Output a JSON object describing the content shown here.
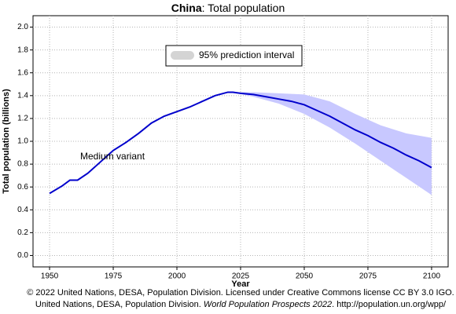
{
  "chart_data": {
    "type": "line",
    "title": {
      "bold": "China",
      "rest": ": Total population"
    },
    "xlabel": "Year",
    "ylabel": "Total population (billions)",
    "xlim": [
      1943.5,
      2106.5
    ],
    "ylim": [
      -0.1,
      2.1
    ],
    "xticks": [
      1950,
      1975,
      2000,
      2025,
      2050,
      2075,
      2100
    ],
    "yticks": [
      {
        "value": 0,
        "label": "0.0"
      },
      0.2,
      0.4,
      0.6,
      0.8,
      {
        "value": 1,
        "label": "1.0"
      },
      1.2,
      1.4,
      1.6,
      1.8,
      {
        "value": 2,
        "label": "2.0"
      }
    ],
    "grid": true,
    "series": [
      {
        "name": "Medium variant",
        "color": "#0000cc",
        "x": [
          1950,
          1955,
          1958,
          1961,
          1965,
          1970,
          1975,
          1980,
          1985,
          1990,
          1995,
          2000,
          2005,
          2010,
          2015,
          2020,
          2022,
          2025,
          2030,
          2035,
          2040,
          2045,
          2050,
          2055,
          2060,
          2065,
          2070,
          2075,
          2080,
          2085,
          2090,
          2095,
          2100
        ],
        "values": [
          0.544,
          0.61,
          0.66,
          0.66,
          0.72,
          0.82,
          0.92,
          0.99,
          1.07,
          1.16,
          1.22,
          1.26,
          1.3,
          1.35,
          1.4,
          1.43,
          1.43,
          1.42,
          1.41,
          1.39,
          1.37,
          1.35,
          1.32,
          1.27,
          1.22,
          1.16,
          1.1,
          1.05,
          0.99,
          0.94,
          0.88,
          0.83,
          0.77
        ]
      }
    ],
    "band": {
      "name": "95% prediction interval",
      "color": "#c8c8ff",
      "legend_color": "#d4d4d4",
      "x": [
        2022,
        2030,
        2040,
        2050,
        2060,
        2070,
        2080,
        2090,
        2100
      ],
      "lower": [
        1.43,
        1.39,
        1.33,
        1.24,
        1.12,
        0.98,
        0.83,
        0.68,
        0.53
      ],
      "upper": [
        1.43,
        1.43,
        1.42,
        1.41,
        1.35,
        1.24,
        1.14,
        1.07,
        1.03
      ]
    },
    "source": [
      "© 2022 United Nations, DESA, Population Division. Licensed under Creative Commons license CC BY 3.0 IGO.",
      {
        "before": "United Nations, DESA, Population Division. ",
        "italic": "World Population Prospects 2022",
        "after": ". http://population.un.org/wpp/"
      }
    ]
  }
}
